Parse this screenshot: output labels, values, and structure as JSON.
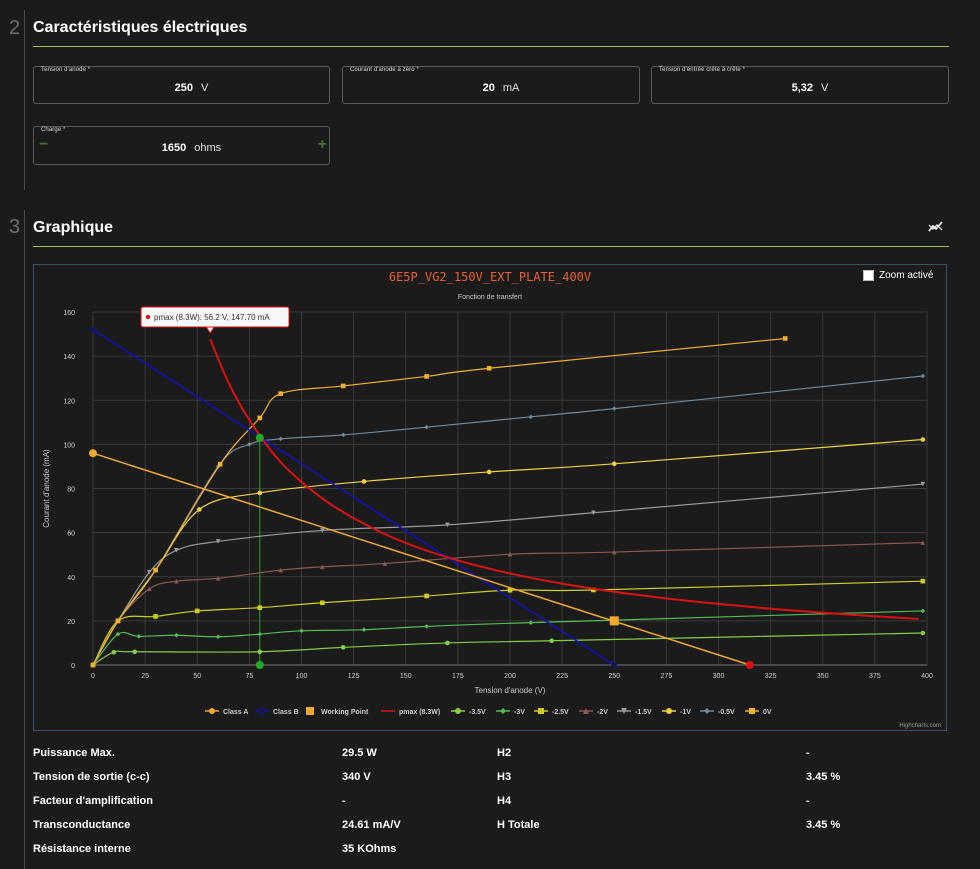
{
  "section2": {
    "number": "2",
    "title": "Caractéristiques électriques",
    "fields": [
      {
        "label": "Tension d'anode *",
        "value": "250",
        "unit": "V"
      },
      {
        "label": "Courant d'anode à zéro *",
        "value": "20",
        "unit": "mA"
      },
      {
        "label": "Tension d'entrée crête à crête *",
        "value": "5,32",
        "unit": "V"
      }
    ],
    "charge": {
      "label": "Charge *",
      "value": "1650",
      "unit": "ohms",
      "minus": "−",
      "plus": "+"
    }
  },
  "section3": {
    "number": "3",
    "title": "Graphique",
    "icon": "chart-line-icon"
  },
  "zoom": {
    "label": "Zoom activé"
  },
  "chart_data": {
    "type": "line",
    "title": "6E5P_VG2_150V_EXT_PLATE_400V",
    "subtitle": "Fonction de transfert",
    "xlabel": "Tension d'anode (V)",
    "ylabel": "Courant d'anode (mA)",
    "xlim": [
      0,
      400
    ],
    "ylim": [
      0,
      160
    ],
    "xticks": [
      0,
      25,
      50,
      75,
      100,
      125,
      150,
      175,
      200,
      225,
      250,
      275,
      300,
      325,
      350,
      375,
      400
    ],
    "yticks": [
      0,
      20,
      40,
      60,
      80,
      100,
      120,
      140,
      160
    ],
    "grid": true,
    "legend_position": "bottom",
    "credits": "Highcharts.com",
    "tooltip": {
      "text": "pmax (8.3W): 56.2 V, 147.70 mA",
      "series": "pmax (8.3W)"
    },
    "colors": {
      "title": "#e8602c",
      "classA": "#f0a830",
      "classB": "#1010c0",
      "working": "#f0a830",
      "pmax": "#dd1111",
      "m35": "#88cc44",
      "m3": "#55bb55",
      "m25": "#cccc22",
      "m2": "#8a5a50",
      "m15": "#999999",
      "m1": "#f0d040",
      "m05": "#708898",
      "v0": "#f0b030",
      "operating": "#22aa22"
    },
    "series": [
      {
        "name": "Class A",
        "kind": "line",
        "marker": "circle",
        "color": "#f0a830",
        "points": [
          [
            0,
            96
          ],
          [
            315,
            0
          ]
        ]
      },
      {
        "name": "Class B",
        "kind": "line",
        "marker": "circle-open",
        "color": "#1010c0",
        "points": [
          [
            0,
            152
          ],
          [
            250,
            0
          ]
        ]
      },
      {
        "name": "Working Point",
        "kind": "point",
        "marker": "square",
        "color": "#f0a830",
        "points": [
          [
            250,
            20
          ]
        ]
      },
      {
        "name": "pmax (8.3W)",
        "kind": "line",
        "marker": "none",
        "color": "#dd1111",
        "points": [
          [
            56.2,
            147.7
          ],
          [
            65,
            128
          ],
          [
            75,
            111
          ],
          [
            90,
            92
          ],
          [
            110,
            75.5
          ],
          [
            130,
            64
          ],
          [
            150,
            55.3
          ],
          [
            175,
            47.4
          ],
          [
            200,
            41.5
          ],
          [
            225,
            36.9
          ],
          [
            250,
            33.2
          ],
          [
            275,
            30.2
          ],
          [
            300,
            27.7
          ],
          [
            325,
            25.5
          ],
          [
            350,
            23.7
          ],
          [
            375,
            22.1
          ],
          [
            396,
            20.9
          ]
        ]
      },
      {
        "name": "-3.5V",
        "kind": "line",
        "marker": "circle",
        "color": "#88cc44",
        "points": [
          [
            0,
            0
          ],
          [
            10,
            5.8
          ],
          [
            20,
            6
          ],
          [
            80,
            6
          ],
          [
            120,
            8
          ],
          [
            170,
            10
          ],
          [
            220,
            11
          ],
          [
            398,
            14.5
          ]
        ]
      },
      {
        "name": "-3V",
        "kind": "line",
        "marker": "diamond",
        "color": "#55bb55",
        "points": [
          [
            0,
            0
          ],
          [
            12,
            14
          ],
          [
            22,
            13
          ],
          [
            40,
            13.5
          ],
          [
            60,
            12.8
          ],
          [
            80,
            14
          ],
          [
            100,
            15.5
          ],
          [
            130,
            16
          ],
          [
            160,
            17.5
          ],
          [
            210,
            19.2
          ],
          [
            398,
            24.5
          ]
        ]
      },
      {
        "name": "-2.5V",
        "kind": "line",
        "marker": "square",
        "color": "#cccc22",
        "points": [
          [
            0,
            0
          ],
          [
            12,
            20
          ],
          [
            30,
            22
          ],
          [
            50,
            24.5
          ],
          [
            80,
            26
          ],
          [
            110,
            28.2
          ],
          [
            160,
            31.3
          ],
          [
            200,
            33.9
          ],
          [
            240,
            34
          ],
          [
            398,
            38
          ]
        ]
      },
      {
        "name": "-2V",
        "kind": "line",
        "marker": "triangle",
        "color": "#8a5a50",
        "points": [
          [
            0,
            0
          ],
          [
            12,
            20
          ],
          [
            27,
            34.5
          ],
          [
            40,
            38
          ],
          [
            60,
            39.3
          ],
          [
            90,
            43
          ],
          [
            110,
            44.5
          ],
          [
            140,
            46
          ],
          [
            200,
            50.2
          ],
          [
            250,
            51.2
          ],
          [
            398,
            55.5
          ]
        ]
      },
      {
        "name": "-1.5V",
        "kind": "line",
        "marker": "triangle-down",
        "color": "#999999",
        "points": [
          [
            0,
            0
          ],
          [
            12,
            20
          ],
          [
            27,
            42
          ],
          [
            40,
            52
          ],
          [
            60,
            56
          ],
          [
            110,
            61
          ],
          [
            170,
            63.5
          ],
          [
            240,
            69
          ],
          [
            398,
            82
          ]
        ]
      },
      {
        "name": "-1V",
        "kind": "line",
        "marker": "circle",
        "color": "#f0d040",
        "points": [
          [
            0,
            0
          ],
          [
            12,
            20
          ],
          [
            30,
            43
          ],
          [
            51,
            70.5
          ],
          [
            80,
            78
          ],
          [
            130,
            83.2
          ],
          [
            190,
            87.5
          ],
          [
            250,
            91.2
          ],
          [
            398,
            102.2
          ]
        ]
      },
      {
        "name": "-0.5V",
        "kind": "line",
        "marker": "diamond",
        "color": "#708898",
        "points": [
          [
            0,
            0
          ],
          [
            12,
            20
          ],
          [
            30,
            43
          ],
          [
            60,
            90
          ],
          [
            75,
            100
          ],
          [
            90,
            102.5
          ],
          [
            120,
            104.3
          ],
          [
            160,
            107.8
          ],
          [
            210,
            112.5
          ],
          [
            250,
            116.2
          ],
          [
            398,
            131
          ]
        ]
      },
      {
        "name": "0V",
        "kind": "line",
        "marker": "square",
        "color": "#f0b030",
        "points": [
          [
            0,
            0
          ],
          [
            12,
            20
          ],
          [
            30,
            43
          ],
          [
            61,
            91
          ],
          [
            80,
            112
          ],
          [
            90,
            123
          ],
          [
            120,
            126.5
          ],
          [
            160,
            130.8
          ],
          [
            190,
            134.5
          ],
          [
            332,
            148
          ]
        ]
      }
    ],
    "operating_point": {
      "x": 80,
      "y_top": 103,
      "y_bottom": 0
    }
  },
  "stats": [
    {
      "label": "Puissance Max.",
      "value": "29.5 W",
      "label2": "H2",
      "value2": "-"
    },
    {
      "label": "Tension de sortie (c-c)",
      "value": "340 V",
      "label2": "H3",
      "value2": "3.45 %"
    },
    {
      "label": "Facteur d'amplification",
      "value": "-",
      "label2": "H4",
      "value2": "-"
    },
    {
      "label": "Transconductance",
      "value": "24.61 mA/V",
      "label2": "H Totale",
      "value2": "3.45 %"
    },
    {
      "label": "Résistance interne",
      "value": "35 KOhms",
      "label2": "",
      "value2": ""
    }
  ]
}
